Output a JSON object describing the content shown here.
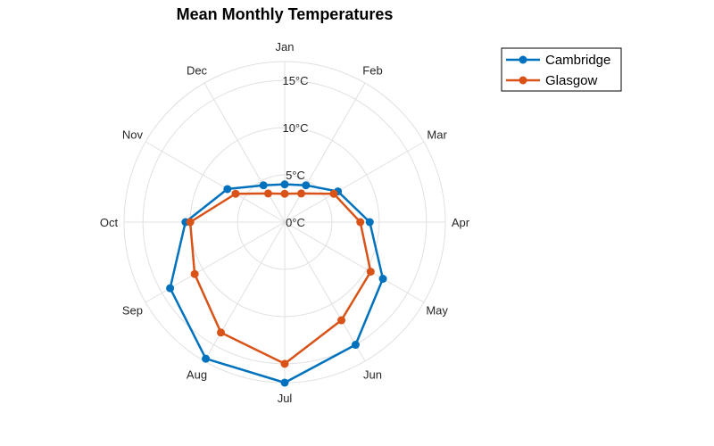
{
  "chart_data": {
    "type": "polar-line",
    "title": "Mean Monthly Temperatures",
    "theta_labels": [
      "Jan",
      "Feb",
      "Mar",
      "Apr",
      "May",
      "Jun",
      "Jul",
      "Aug",
      "Sep",
      "Oct",
      "Nov",
      "Dec"
    ],
    "r_ticks": [
      0,
      5,
      10,
      15
    ],
    "r_tick_labels": [
      "0°C",
      "5°C",
      "10°C",
      "15°C"
    ],
    "rlim": [
      0,
      17
    ],
    "grid": true,
    "legend_position": "top-right",
    "series": [
      {
        "name": "Cambridge",
        "color": "#0072BD",
        "values": [
          4.0,
          4.5,
          6.5,
          9.0,
          12.0,
          15.0,
          17.0,
          16.7,
          14.0,
          10.5,
          7.0,
          4.5
        ]
      },
      {
        "name": "Glasgow",
        "color": "#D95319",
        "values": [
          3.0,
          3.5,
          6.0,
          8.0,
          10.5,
          12.0,
          15.0,
          13.5,
          11.0,
          10.0,
          6.0,
          3.5
        ]
      }
    ]
  }
}
